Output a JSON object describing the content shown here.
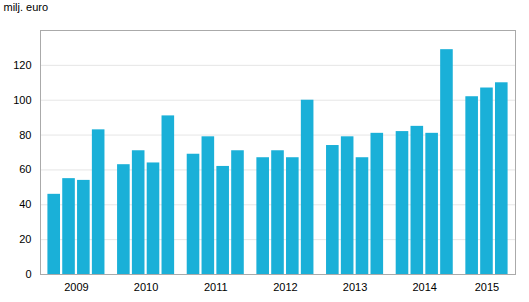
{
  "chart_data": {
    "type": "bar",
    "ylabel": "milj. euro",
    "categories": [
      "2009",
      "2010",
      "2011",
      "2012",
      "2013",
      "2014",
      "2015"
    ],
    "values": [
      [
        46,
        55,
        54,
        83
      ],
      [
        63,
        71,
        64,
        91
      ],
      [
        69,
        79,
        62,
        71
      ],
      [
        67,
        71,
        67,
        100
      ],
      [
        74,
        79,
        67,
        81
      ],
      [
        82,
        85,
        81,
        129
      ],
      [
        102,
        107,
        110
      ]
    ],
    "color": "#1ab0d8",
    "ylim": [
      0,
      140
    ],
    "yticks": [
      0,
      20,
      40,
      60,
      80,
      100,
      120
    ],
    "grid": true
  }
}
